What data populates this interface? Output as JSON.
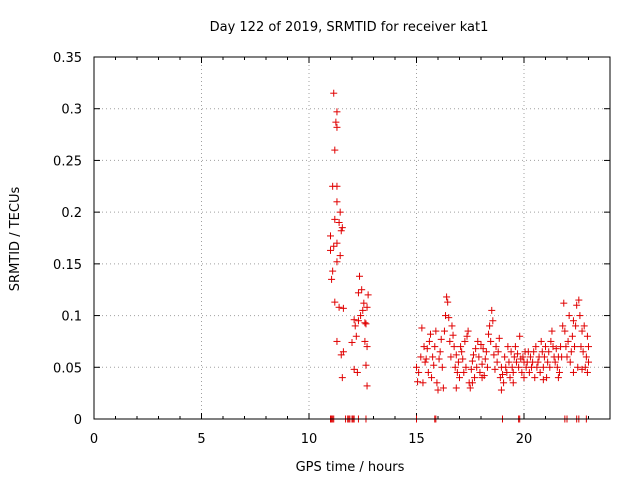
{
  "chart_data": {
    "type": "scatter",
    "title": "Day 122 of 2019, SRMTID for receiver kat1",
    "xlabel": "GPS time / hours",
    "ylabel": "SRMTID / TECUs",
    "xlim": [
      0,
      24
    ],
    "ylim": [
      0,
      0.35
    ],
    "xticks": [
      0,
      5,
      10,
      15,
      20
    ],
    "xtick_labels": [
      "0",
      "5",
      "10",
      "15",
      "20"
    ],
    "yticks": [
      0,
      0.05,
      0.1,
      0.15,
      0.2,
      0.25,
      0.3,
      0.35
    ],
    "ytick_labels": [
      "0",
      "0.05",
      "0.1",
      "0.15",
      "0.2",
      "0.25",
      "0.3",
      "0.35"
    ],
    "grid": true,
    "legend": "none",
    "marker": "+",
    "series_color": "#e00000",
    "series": [
      {
        "name": "",
        "points": [
          [
            11.15,
            0.315
          ],
          [
            11.3,
            0.297
          ],
          [
            11.25,
            0.287
          ],
          [
            11.3,
            0.282
          ],
          [
            11.2,
            0.26
          ],
          [
            11.1,
            0.225
          ],
          [
            11.3,
            0.225
          ],
          [
            11.3,
            0.21
          ],
          [
            11.45,
            0.2
          ],
          [
            11.2,
            0.193
          ],
          [
            11.4,
            0.19
          ],
          [
            11.55,
            0.185
          ],
          [
            11.5,
            0.182
          ],
          [
            11.0,
            0.177
          ],
          [
            11.3,
            0.17
          ],
          [
            11.15,
            0.167
          ],
          [
            11.0,
            0.163
          ],
          [
            11.45,
            0.158
          ],
          [
            11.3,
            0.152
          ],
          [
            11.1,
            0.143
          ],
          [
            11.05,
            0.135
          ],
          [
            11.4,
            0.108
          ],
          [
            11.6,
            0.107
          ],
          [
            11.2,
            0.113
          ],
          [
            11.3,
            0.075
          ],
          [
            11.6,
            0.065
          ],
          [
            11.5,
            0.062
          ],
          [
            11.55,
            0.04
          ],
          [
            12.1,
            0.096
          ],
          [
            12.15,
            0.09
          ],
          [
            12.2,
            0.08
          ],
          [
            12.0,
            0.074
          ],
          [
            12.3,
            0.122
          ],
          [
            12.35,
            0.138
          ],
          [
            12.45,
            0.125
          ],
          [
            12.55,
            0.112
          ],
          [
            12.4,
            0.1
          ],
          [
            12.6,
            0.093
          ],
          [
            12.65,
            0.092
          ],
          [
            12.75,
            0.12
          ],
          [
            12.7,
            0.108
          ],
          [
            12.3,
            0.095
          ],
          [
            12.5,
            0.105
          ],
          [
            12.6,
            0.075
          ],
          [
            12.7,
            0.07
          ],
          [
            12.65,
            0.052
          ],
          [
            12.1,
            0.048
          ],
          [
            12.25,
            0.045
          ],
          [
            12.7,
            0.032
          ],
          [
            15.0,
            0.05
          ],
          [
            15.1,
            0.045
          ],
          [
            15.2,
            0.06
          ],
          [
            15.25,
            0.088
          ],
          [
            15.3,
            0.035
          ],
          [
            15.35,
            0.07
          ],
          [
            15.4,
            0.055
          ],
          [
            15.5,
            0.068
          ],
          [
            15.55,
            0.045
          ],
          [
            15.6,
            0.075
          ],
          [
            15.65,
            0.082
          ],
          [
            15.7,
            0.04
          ],
          [
            15.75,
            0.06
          ],
          [
            15.8,
            0.052
          ],
          [
            15.85,
            0.07
          ],
          [
            15.9,
            0.085
          ],
          [
            15.95,
            0.035
          ],
          [
            16.0,
            0.028
          ],
          [
            16.05,
            0.058
          ],
          [
            16.1,
            0.065
          ],
          [
            16.15,
            0.077
          ],
          [
            16.2,
            0.05
          ],
          [
            16.25,
            0.03
          ],
          [
            16.3,
            0.085
          ],
          [
            16.35,
            0.1
          ],
          [
            16.4,
            0.118
          ],
          [
            16.45,
            0.113
          ],
          [
            16.5,
            0.098
          ],
          [
            16.55,
            0.075
          ],
          [
            16.6,
            0.06
          ],
          [
            16.65,
            0.09
          ],
          [
            16.7,
            0.081
          ],
          [
            16.75,
            0.07
          ],
          [
            16.8,
            0.05
          ],
          [
            16.85,
            0.062
          ],
          [
            16.9,
            0.045
          ],
          [
            16.95,
            0.055
          ],
          [
            17.0,
            0.04
          ],
          [
            17.05,
            0.07
          ],
          [
            17.1,
            0.065
          ],
          [
            17.15,
            0.058
          ],
          [
            17.2,
            0.045
          ],
          [
            17.25,
            0.075
          ],
          [
            17.3,
            0.05
          ],
          [
            17.35,
            0.08
          ],
          [
            17.4,
            0.085
          ],
          [
            17.45,
            0.035
          ],
          [
            17.5,
            0.03
          ],
          [
            17.55,
            0.048
          ],
          [
            17.6,
            0.056
          ],
          [
            17.65,
            0.062
          ],
          [
            17.7,
            0.04
          ],
          [
            17.75,
            0.068
          ],
          [
            17.8,
            0.05
          ],
          [
            17.85,
            0.075
          ],
          [
            17.9,
            0.06
          ],
          [
            17.95,
            0.045
          ],
          [
            18.0,
            0.072
          ],
          [
            18.05,
            0.053
          ],
          [
            18.1,
            0.068
          ],
          [
            18.15,
            0.042
          ],
          [
            18.2,
            0.058
          ],
          [
            18.25,
            0.065
          ],
          [
            18.3,
            0.05
          ],
          [
            18.35,
            0.082
          ],
          [
            18.4,
            0.09
          ],
          [
            18.45,
            0.075
          ],
          [
            18.5,
            0.105
          ],
          [
            18.55,
            0.095
          ],
          [
            18.6,
            0.062
          ],
          [
            18.65,
            0.048
          ],
          [
            18.7,
            0.07
          ],
          [
            18.75,
            0.055
          ],
          [
            18.8,
            0.065
          ],
          [
            18.85,
            0.078
          ],
          [
            18.9,
            0.04
          ],
          [
            18.95,
            0.05
          ],
          [
            19.0,
            0.043
          ],
          [
            19.05,
            0.035
          ],
          [
            19.1,
            0.06
          ],
          [
            19.15,
            0.05
          ],
          [
            19.2,
            0.045
          ],
          [
            19.25,
            0.07
          ],
          [
            19.3,
            0.055
          ],
          [
            19.35,
            0.04
          ],
          [
            19.4,
            0.065
          ],
          [
            19.45,
            0.05
          ],
          [
            19.5,
            0.045
          ],
          [
            19.55,
            0.06
          ],
          [
            19.6,
            0.07
          ],
          [
            19.65,
            0.055
          ],
          [
            19.7,
            0.063
          ],
          [
            19.75,
            0.05
          ],
          [
            19.8,
            0.08
          ],
          [
            19.85,
            0.058
          ],
          [
            19.9,
            0.045
          ],
          [
            19.95,
            0.06
          ],
          [
            20.0,
            0.04
          ],
          [
            20.05,
            0.065
          ],
          [
            20.1,
            0.05
          ],
          [
            20.15,
            0.055
          ],
          [
            20.2,
            0.065
          ],
          [
            20.25,
            0.045
          ],
          [
            20.3,
            0.06
          ],
          [
            20.35,
            0.05
          ],
          [
            20.4,
            0.055
          ],
          [
            20.45,
            0.065
          ],
          [
            20.5,
            0.04
          ],
          [
            20.55,
            0.07
          ],
          [
            20.6,
            0.05
          ],
          [
            20.65,
            0.055
          ],
          [
            20.7,
            0.06
          ],
          [
            20.75,
            0.045
          ],
          [
            20.8,
            0.075
          ],
          [
            20.85,
            0.065
          ],
          [
            20.9,
            0.05
          ],
          [
            20.95,
            0.06
          ],
          [
            21.0,
            0.07
          ],
          [
            21.05,
            0.04
          ],
          [
            21.1,
            0.055
          ],
          [
            21.15,
            0.065
          ],
          [
            21.2,
            0.05
          ],
          [
            21.25,
            0.075
          ],
          [
            21.3,
            0.085
          ],
          [
            21.35,
            0.07
          ],
          [
            21.4,
            0.06
          ],
          [
            21.45,
            0.055
          ],
          [
            21.5,
            0.068
          ],
          [
            21.55,
            0.05
          ],
          [
            21.6,
            0.06
          ],
          [
            21.65,
            0.045
          ],
          [
            21.7,
            0.07
          ],
          [
            21.75,
            0.06
          ],
          [
            21.8,
            0.09
          ],
          [
            21.85,
            0.112
          ],
          [
            21.9,
            0.085
          ],
          [
            21.95,
            0.07
          ],
          [
            22.0,
            0.06
          ],
          [
            22.05,
            0.075
          ],
          [
            22.1,
            0.1
          ],
          [
            22.15,
            0.055
          ],
          [
            22.2,
            0.065
          ],
          [
            22.25,
            0.08
          ],
          [
            22.3,
            0.095
          ],
          [
            22.35,
            0.07
          ],
          [
            22.4,
            0.09
          ],
          [
            22.45,
            0.11
          ],
          [
            22.5,
            0.05
          ],
          [
            22.55,
            0.115
          ],
          [
            22.6,
            0.1
          ],
          [
            22.65,
            0.07
          ],
          [
            22.7,
            0.085
          ],
          [
            22.75,
            0.065
          ],
          [
            22.8,
            0.09
          ],
          [
            22.85,
            0.05
          ],
          [
            22.9,
            0.06
          ],
          [
            22.95,
            0.045
          ],
          [
            23.0,
            0.055
          ],
          [
            23.0,
            0.07
          ],
          [
            22.95,
            0.08
          ],
          [
            15.05,
            0.036
          ],
          [
            15.45,
            0.058
          ],
          [
            16.85,
            0.03
          ],
          [
            17.6,
            0.035
          ],
          [
            18.05,
            0.04
          ],
          [
            18.95,
            0.028
          ],
          [
            19.5,
            0.035
          ],
          [
            20.0,
            0.055
          ],
          [
            20.9,
            0.038
          ],
          [
            21.6,
            0.04
          ],
          [
            22.3,
            0.045
          ],
          [
            22.7,
            0.048
          ],
          [
            11.0,
            0
          ],
          [
            11.05,
            0
          ],
          [
            11.1,
            0
          ],
          [
            11.15,
            0
          ],
          [
            11.7,
            0
          ],
          [
            11.8,
            0
          ],
          [
            11.85,
            0
          ],
          [
            11.9,
            0
          ],
          [
            12.0,
            0
          ],
          [
            12.05,
            0
          ],
          [
            12.1,
            0
          ],
          [
            12.3,
            0
          ],
          [
            12.65,
            0
          ],
          [
            15.0,
            0
          ],
          [
            15.85,
            0
          ],
          [
            15.9,
            0
          ],
          [
            19.0,
            0
          ],
          [
            19.75,
            0
          ],
          [
            19.8,
            0
          ],
          [
            21.9,
            0
          ],
          [
            22.0,
            0
          ],
          [
            22.45,
            0
          ],
          [
            22.55,
            0
          ],
          [
            22.9,
            0
          ]
        ]
      }
    ]
  }
}
